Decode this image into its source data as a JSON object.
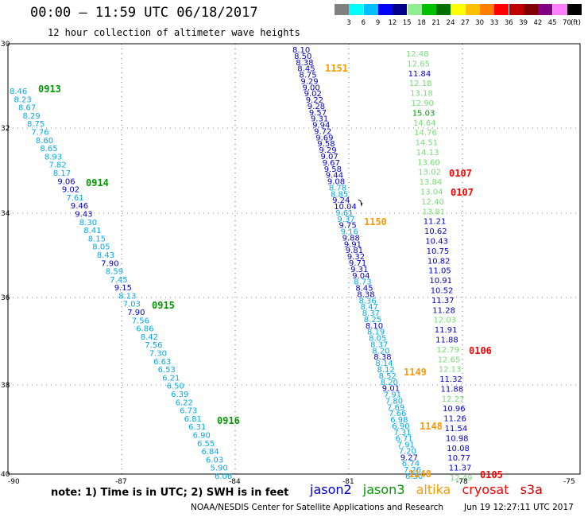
{
  "header": {
    "title": "00:00 – 11:59 UTC 06/18/2017",
    "subtitle": "12 hour collection of altimeter wave heights"
  },
  "color_scale": {
    "labels": [
      "3",
      "6",
      "9",
      "12",
      "15",
      "18",
      "21",
      "24",
      "27",
      "30",
      "33",
      "36",
      "39",
      "42",
      "45",
      "70"
    ],
    "unit": "(ft)",
    "colors": [
      "#808080",
      "#00ffff",
      "#00bfff",
      "#0000ff",
      "#00008b",
      "#90ee90",
      "#00c000",
      "#007000",
      "#ffff00",
      "#ffc000",
      "#ff8000",
      "#ff0000",
      "#c00000",
      "#800000",
      "#800080",
      "#ff80ff",
      "#000000"
    ]
  },
  "axes": {
    "y_labels": [
      "30",
      "32",
      "34",
      "36",
      "38",
      "40"
    ],
    "x_labels": [
      "-90",
      "-87",
      "-84",
      "-81",
      "-78",
      "-75"
    ]
  },
  "colors": {
    "jason2": "#0000cc",
    "jason2_light": "#00aaee",
    "jason3": "#009900",
    "jason3_light": "#77dd77",
    "altika": "#ff9900",
    "cryosat": "#ff0000",
    "s3a": "#cc0000"
  },
  "tracks": [
    {
      "name": "left-track",
      "values": [
        "8.46",
        "8.23",
        "8.67",
        "8.29",
        "8.75",
        "7.76",
        "8.60",
        "8.65",
        "8.93",
        "7.82",
        "8.17",
        "9.06",
        "9.02",
        "7.61",
        "9.46",
        "9.43",
        "8.30",
        "8.41",
        "8.15",
        "8.05",
        "8.43",
        "7.90",
        "8.59",
        "7.45",
        "9.15",
        "8.13",
        "7.03",
        "7.90",
        "7.56",
        "6.86",
        "8.42",
        "7.56",
        "7.30",
        "6.63",
        "6.53",
        "6.21",
        "6.50",
        "6.39",
        "6.22",
        "6.73",
        "6.81",
        "6.31",
        "6.90",
        "6.55",
        "6.84",
        "6.03",
        "5.90",
        "6.06"
      ],
      "dark": [
        "9.06",
        "9.02",
        "9.46",
        "9.43",
        "9.15",
        "7.90"
      ]
    },
    {
      "name": "middle-track",
      "values": [
        "8.10",
        "8.50",
        "8.38",
        "8.45",
        "8.75",
        "9.29",
        "9.00",
        "9.02",
        "9.22",
        "9.28",
        "9.57",
        "9.31",
        "9.94",
        "9.72",
        "9.69",
        "9.58",
        "9.29",
        "9.07",
        "9.67",
        "9.58",
        "9.44",
        "9.08",
        "8.78",
        "8.85",
        "9.24",
        "10.04",
        "9.61",
        "9.37",
        "9.75",
        "9.16",
        "9.88",
        "9.91",
        "9.81",
        "9.32",
        "9.71",
        "9.31",
        "9.04",
        "8.73",
        "8.45",
        "8.38",
        "8.36",
        "8.47",
        "8.37",
        "8.25",
        "8.10",
        "8.19",
        "8.05",
        "8.37",
        "8.20",
        "8.38",
        "8.14",
        "8.12",
        "8.52",
        "8.20",
        "9.01",
        "7.91",
        "7.80",
        "7.69",
        "7.66",
        "6.98",
        "6.90",
        "7.31",
        "6.71",
        "7.91",
        "7.20",
        "9.27",
        "6.74",
        "7.26",
        "6.30"
      ],
      "dark": [
        "8.10",
        "8.50",
        "8.38",
        "8.45",
        "8.75",
        "9.29",
        "9.00",
        "9.02",
        "9.22",
        "9.28",
        "9.57",
        "9.31",
        "9.94",
        "9.72",
        "9.69",
        "9.58",
        "9.07",
        "9.67",
        "9.58",
        "9.44",
        "9.08",
        "9.24",
        "10.04",
        "9.75",
        "9.88",
        "9.91",
        "9.81",
        "9.32",
        "9.71",
        "9.31",
        "9.04",
        "9.01",
        "9.27"
      ]
    },
    {
      "name": "right-track",
      "values": [
        "12.48",
        "12.65",
        "11.84",
        "12.18",
        "13.18",
        "12.90",
        "15.03",
        "14.64",
        "14.76",
        "14.51",
        "14.13",
        "13.60",
        "13.02",
        "13.84",
        "13.04",
        "12.40",
        "13.81",
        "11.21",
        "10.62",
        "10.43",
        "10.75",
        "10.82",
        "11.05",
        "10.91",
        "10.52",
        "11.37",
        "11.28",
        "12.03",
        "11.91",
        "11.88",
        "12.79",
        "12.65",
        "12.13",
        "11.32",
        "11.88",
        "12.27",
        "10.96",
        "11.26",
        "11.54",
        "10.98",
        "10.08",
        "10.77",
        "11.37",
        "12.49"
      ],
      "dark": [
        "11.84",
        "11.21",
        "10.62",
        "10.43",
        "10.75",
        "10.82",
        "11.05",
        "10.91",
        "10.52",
        "11.37",
        "11.28",
        "11.91",
        "11.88",
        "11.32",
        "11.88",
        "10.96",
        "11.26",
        "11.54",
        "10.98",
        "10.08",
        "10.77",
        "11.37"
      ],
      "dark_green": [
        "15.03"
      ]
    }
  ],
  "pass_labels": [
    {
      "text": "0913",
      "sat": "jason3"
    },
    {
      "text": "0914",
      "sat": "jason3"
    },
    {
      "text": "0915",
      "sat": "jason3"
    },
    {
      "text": "0916",
      "sat": "jason3"
    },
    {
      "text": "1151",
      "sat": "altika"
    },
    {
      "text": "1150",
      "sat": "altika"
    },
    {
      "text": "1149",
      "sat": "altika"
    },
    {
      "text": "1148",
      "sat": "altika"
    },
    {
      "text": "1148",
      "sat": "altika"
    },
    {
      "text": "0107",
      "sat": "cryosat"
    },
    {
      "text": "0107",
      "sat": "cryosat"
    },
    {
      "text": "0106",
      "sat": "cryosat"
    },
    {
      "text": "0105",
      "sat": "cryosat"
    }
  ],
  "footer": {
    "note": "note: 1) Time is in UTC; 2) SWH is in feet",
    "satellites": [
      "jason2",
      "jason3",
      "altika",
      "cryosat",
      "s3a"
    ],
    "credit": "NOAA/NESDIS Center for Satellite Applications and Research",
    "timestamp": "Jun 19 12:27:11 UTC 2017"
  }
}
